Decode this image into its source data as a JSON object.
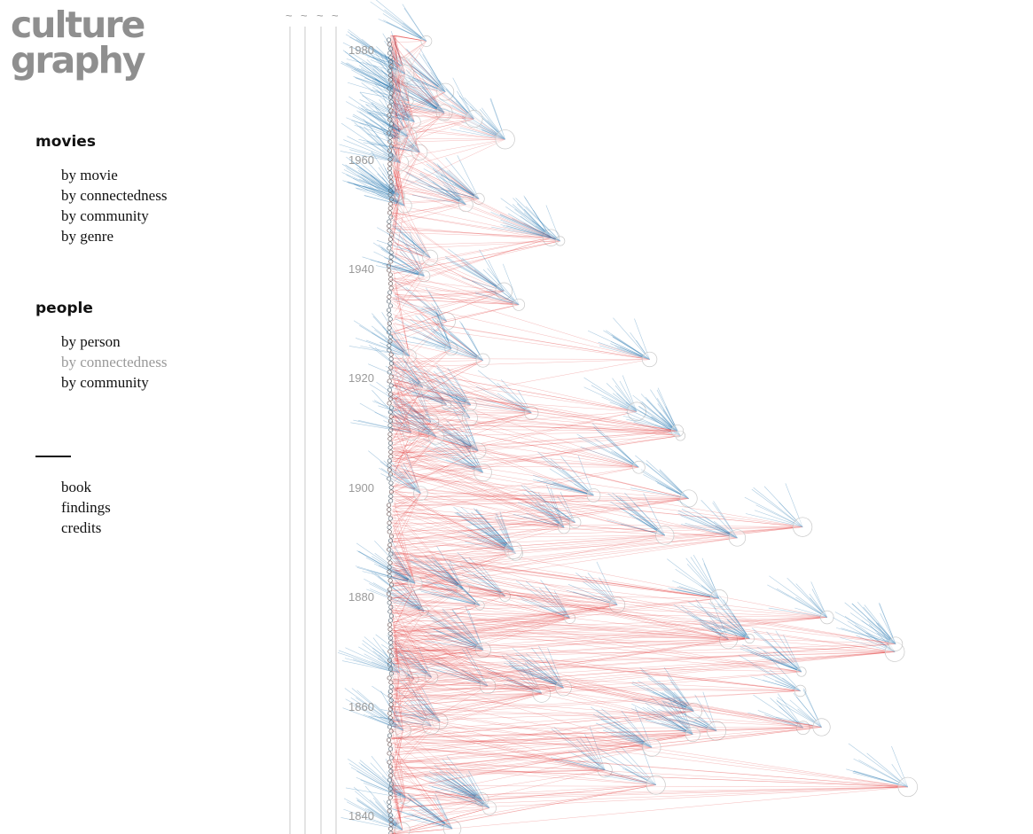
{
  "logo": {
    "line1": "culture",
    "line2": "graphy"
  },
  "nav": {
    "movies": {
      "title": "movies",
      "items": [
        "by movie",
        "by connectedness",
        "by community",
        "by genre"
      ]
    },
    "people": {
      "title": "people",
      "items": [
        "by person",
        "by connectedness",
        "by community"
      ],
      "active_index": 1
    },
    "other": {
      "items": [
        "book",
        "findings",
        "credits"
      ]
    }
  },
  "timeline": {
    "year_labels": [
      "1980",
      "1960",
      "1940",
      "1920",
      "1900",
      "1880",
      "1860",
      "1840"
    ],
    "scrollbar_markers": [
      "~",
      "~",
      "~",
      "~"
    ]
  },
  "colors": {
    "influence_out": "#e23b3b",
    "influence_in": "#2f7db3",
    "axis_text": "#9a9a9a",
    "logo": "#8f8f8f",
    "active_link": "#9a9a9a"
  }
}
